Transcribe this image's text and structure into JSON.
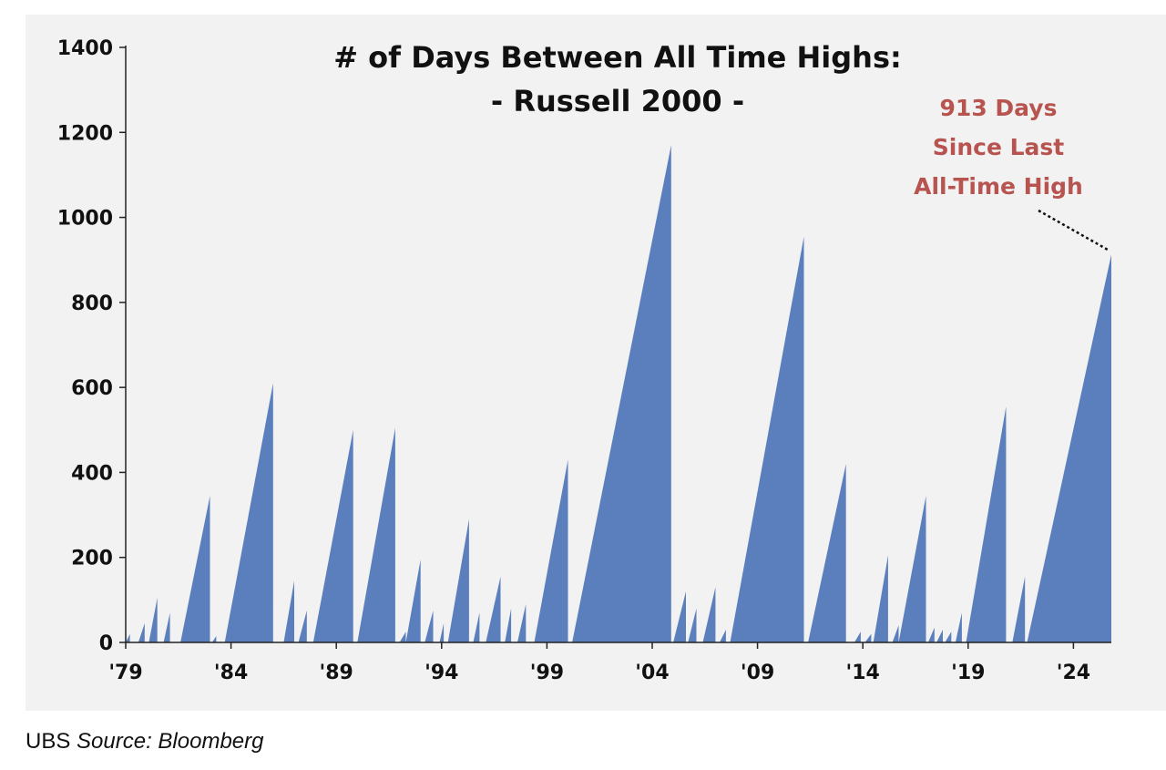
{
  "chart_data": {
    "type": "area",
    "title": "# of Days Between All Time Highs:",
    "subtitle": "- Russell 2000 -",
    "xlabel": "",
    "ylabel": "",
    "ylim": [
      0,
      1400
    ],
    "yticks": [
      0,
      200,
      400,
      600,
      800,
      1000,
      1200,
      1400
    ],
    "xlim": [
      1979,
      2025.8
    ],
    "xticks": [
      1979,
      1984,
      1989,
      1994,
      1999,
      2004,
      2009,
      2014,
      2019,
      2024
    ],
    "xtick_labels": [
      "'79",
      "'84",
      "'89",
      "'94",
      "'99",
      "'04",
      "'09",
      "'14",
      "'19",
      "'24"
    ],
    "grid": false,
    "legend": "none",
    "color": "#5b7fbd",
    "annotation": {
      "lines": [
        "913 Days",
        "Since Last",
        "All-Time High"
      ],
      "color": "#b85450",
      "points_to": {
        "x": 2025.8,
        "y": 913
      }
    },
    "series": [
      {
        "peaks": [
          {
            "start": 1979.0,
            "end": 1979.2,
            "value": 20
          },
          {
            "start": 1979.6,
            "end": 1979.9,
            "value": 45
          },
          {
            "start": 1980.1,
            "end": 1980.5,
            "value": 105
          },
          {
            "start": 1980.8,
            "end": 1981.1,
            "value": 70
          },
          {
            "start": 1981.6,
            "end": 1983.0,
            "value": 345
          },
          {
            "start": 1983.1,
            "end": 1983.3,
            "value": 15
          },
          {
            "start": 1983.7,
            "end": 1986.0,
            "value": 610
          },
          {
            "start": 1986.5,
            "end": 1987.0,
            "value": 145
          },
          {
            "start": 1987.2,
            "end": 1987.6,
            "value": 75
          },
          {
            "start": 1987.9,
            "end": 1989.8,
            "value": 500
          },
          {
            "start": 1990.0,
            "end": 1991.8,
            "value": 505
          },
          {
            "start": 1992.0,
            "end": 1992.3,
            "value": 25
          },
          {
            "start": 1992.3,
            "end": 1993.0,
            "value": 195
          },
          {
            "start": 1993.2,
            "end": 1993.6,
            "value": 75
          },
          {
            "start": 1993.9,
            "end": 1994.1,
            "value": 45
          },
          {
            "start": 1994.3,
            "end": 1995.3,
            "value": 290
          },
          {
            "start": 1995.5,
            "end": 1995.8,
            "value": 70
          },
          {
            "start": 1996.1,
            "end": 1996.8,
            "value": 155
          },
          {
            "start": 1997.0,
            "end": 1997.3,
            "value": 80
          },
          {
            "start": 1997.6,
            "end": 1998.0,
            "value": 90
          },
          {
            "start": 1998.4,
            "end": 2000.0,
            "value": 430
          },
          {
            "start": 2000.2,
            "end": 2004.9,
            "value": 1170
          },
          {
            "start": 2005.0,
            "end": 2005.6,
            "value": 120
          },
          {
            "start": 2005.7,
            "end": 2006.1,
            "value": 80
          },
          {
            "start": 2006.4,
            "end": 2007.0,
            "value": 130
          },
          {
            "start": 2007.2,
            "end": 2007.5,
            "value": 30
          },
          {
            "start": 2007.7,
            "end": 2011.2,
            "value": 955
          },
          {
            "start": 2011.4,
            "end": 2013.2,
            "value": 420
          },
          {
            "start": 2013.6,
            "end": 2013.9,
            "value": 25
          },
          {
            "start": 2014.1,
            "end": 2014.4,
            "value": 20
          },
          {
            "start": 2014.5,
            "end": 2015.2,
            "value": 205
          },
          {
            "start": 2015.4,
            "end": 2015.7,
            "value": 40
          },
          {
            "start": 2015.7,
            "end": 2017.0,
            "value": 345
          },
          {
            "start": 2017.1,
            "end": 2017.4,
            "value": 35
          },
          {
            "start": 2017.5,
            "end": 2017.8,
            "value": 30
          },
          {
            "start": 2017.9,
            "end": 2018.2,
            "value": 25
          },
          {
            "start": 2018.4,
            "end": 2018.7,
            "value": 70
          },
          {
            "start": 2018.9,
            "end": 2020.8,
            "value": 555
          },
          {
            "start": 2021.1,
            "end": 2021.7,
            "value": 155
          },
          {
            "start": 2021.8,
            "end": 2025.8,
            "value": 913
          }
        ]
      }
    ]
  },
  "footer": {
    "brand": "UBS",
    "source": "Source: Bloomberg"
  }
}
